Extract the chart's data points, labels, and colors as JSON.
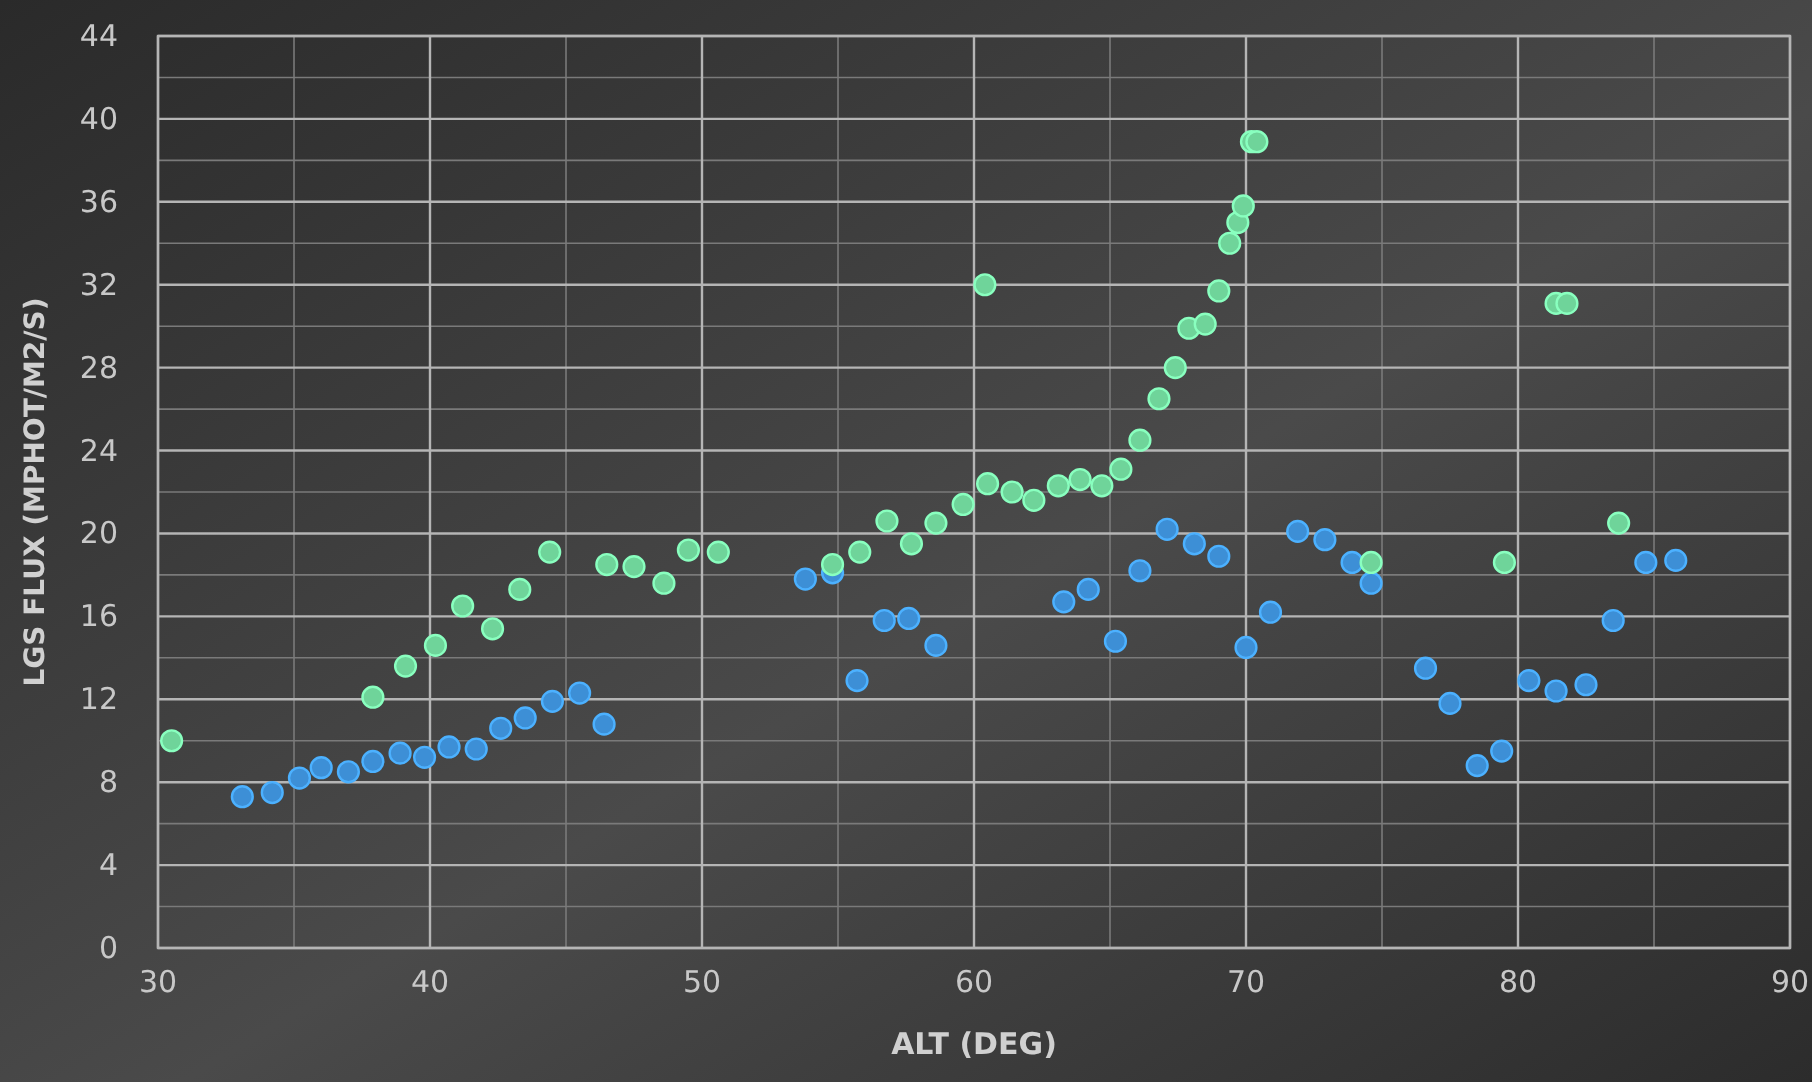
{
  "chart_data": {
    "type": "scatter",
    "xlabel": "ALT (DEG)",
    "ylabel": "LGS FLUX (MPHOT/M2/S)",
    "xlim": [
      30,
      90
    ],
    "xticks": [
      30,
      40,
      50,
      60,
      70,
      80,
      90
    ],
    "ylim": [
      0,
      44
    ],
    "yticks": [
      0,
      4,
      8,
      12,
      16,
      20,
      24,
      28,
      32,
      36,
      40,
      44
    ],
    "grid": true,
    "marker": "circle",
    "series": [
      {
        "color": "#6fd49a",
        "x": [
          30.5,
          37.9,
          39.1,
          40.2,
          41.2,
          42.3,
          43.3,
          44.4,
          46.5,
          47.5,
          48.6,
          49.5,
          50.6,
          54.8,
          55.8,
          56.8,
          57.7,
          58.6,
          59.6,
          60.4,
          60.5,
          61.4,
          62.2,
          63.1,
          63.9,
          64.7,
          65.4,
          66.1,
          66.8,
          67.4,
          67.9,
          68.5,
          69.0,
          69.4,
          69.7,
          69.9,
          70.2,
          70.4,
          74.6,
          79.5,
          81.4,
          81.8,
          83.7
        ],
        "values": [
          10.0,
          12.1,
          13.6,
          14.6,
          16.5,
          15.4,
          17.3,
          19.1,
          18.5,
          18.4,
          17.6,
          19.2,
          19.1,
          18.5,
          19.1,
          20.6,
          19.5,
          20.5,
          21.4,
          32.0,
          22.4,
          22.0,
          21.6,
          22.3,
          22.6,
          22.3,
          23.1,
          24.5,
          26.5,
          28.0,
          29.9,
          30.1,
          31.7,
          34.0,
          35.0,
          35.8,
          38.9,
          38.9,
          18.6,
          18.6,
          31.1,
          31.1,
          20.5
        ]
      },
      {
        "color": "#3d8fd6",
        "x": [
          33.1,
          34.2,
          35.2,
          36.0,
          37.0,
          37.9,
          38.9,
          39.8,
          40.7,
          41.7,
          42.6,
          43.5,
          44.5,
          45.5,
          46.4,
          53.8,
          54.8,
          55.7,
          56.7,
          57.6,
          58.6,
          63.3,
          64.2,
          65.2,
          66.1,
          67.1,
          68.1,
          69.0,
          70.0,
          70.9,
          71.9,
          72.9,
          73.9,
          74.6,
          76.6,
          77.5,
          78.5,
          79.4,
          80.4,
          81.4,
          82.5,
          83.5,
          84.7,
          85.8
        ],
        "values": [
          7.3,
          7.5,
          8.2,
          8.7,
          8.5,
          9.0,
          9.4,
          9.2,
          9.7,
          9.6,
          10.6,
          11.1,
          11.9,
          12.3,
          10.8,
          17.8,
          18.1,
          12.9,
          15.8,
          15.9,
          14.6,
          16.7,
          17.3,
          14.8,
          18.2,
          20.2,
          19.5,
          18.9,
          14.5,
          16.2,
          20.1,
          19.7,
          18.6,
          17.6,
          13.5,
          11.8,
          8.8,
          9.5,
          12.9,
          12.4,
          12.7,
          15.8,
          18.6,
          18.7
        ]
      }
    ]
  }
}
